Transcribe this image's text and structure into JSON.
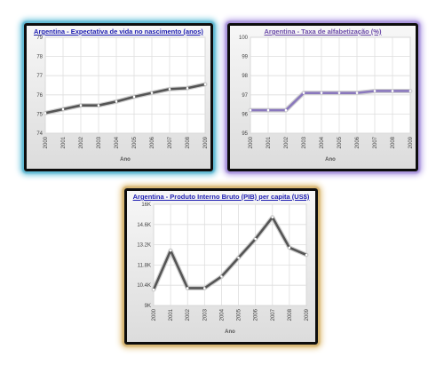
{
  "chart_data": [
    {
      "id": "life",
      "type": "line",
      "title": "Argentina - Expectativa de vida no nascimento (anos)",
      "xlabel": "Ano",
      "ylabel": "",
      "categories": [
        "2000",
        "2001",
        "2002",
        "2003",
        "2004",
        "2005",
        "2006",
        "2007",
        "2008",
        "2009"
      ],
      "series": [
        {
          "values": [
            75.05,
            75.25,
            75.45,
            75.45,
            75.65,
            75.9,
            76.1,
            76.3,
            76.35,
            76.55
          ]
        }
      ],
      "ylim": [
        74,
        79
      ],
      "yticks": [
        74,
        75,
        76,
        77,
        78,
        79
      ],
      "ytick_labels": [
        "74",
        "75",
        "76",
        "77",
        "78",
        "79"
      ],
      "grid": true,
      "line_color": "#555555",
      "title_color": "#1b1bb0"
    },
    {
      "id": "lit",
      "type": "line",
      "title": "Argentina - Taxa de alfabetização (%)",
      "xlabel": "Ano",
      "ylabel": "",
      "categories": [
        "2000",
        "2001",
        "2002",
        "2003",
        "2004",
        "2005",
        "2006",
        "2007",
        "2008",
        "2009"
      ],
      "series": [
        {
          "values": [
            96.2,
            96.2,
            96.2,
            97.1,
            97.1,
            97.1,
            97.1,
            97.2,
            97.2,
            97.2
          ]
        }
      ],
      "ylim": [
        95,
        100
      ],
      "yticks": [
        95,
        96,
        97,
        98,
        99,
        100
      ],
      "ytick_labels": [
        "95",
        "96",
        "97",
        "98",
        "99",
        "100"
      ],
      "grid": true,
      "line_color": "#8a78bd",
      "title_color": "#6b4aa8"
    },
    {
      "id": "gdp",
      "type": "line",
      "title": "Argentina - Produto Interno Bruto (PIB) per capita (US$)",
      "xlabel": "Ano",
      "ylabel": "",
      "categories": [
        "2000",
        "2001",
        "2002",
        "2003",
        "2004",
        "2005",
        "2006",
        "2007",
        "2008",
        "2009"
      ],
      "series": [
        {
          "values": [
            10100,
            12800,
            10200,
            10200,
            11000,
            12300,
            13600,
            15100,
            13000,
            12500
          ]
        }
      ],
      "ylim": [
        9000,
        16000
      ],
      "yticks": [
        9000,
        10400,
        11800,
        13200,
        14600,
        16000
      ],
      "ytick_labels": [
        "9K",
        "10.4K",
        "11.8K",
        "13.2K",
        "14.6K",
        "16K"
      ],
      "grid": true,
      "line_color": "#555555",
      "title_color": "#1b1bb0"
    }
  ]
}
